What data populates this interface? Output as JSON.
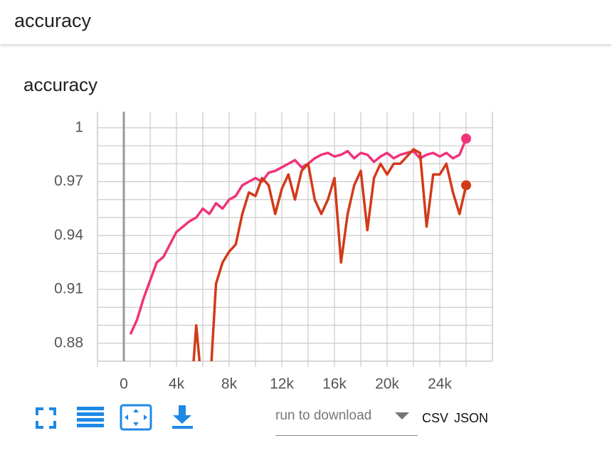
{
  "header": {
    "title": "accuracy"
  },
  "card": {
    "title": "accuracy"
  },
  "chart_data": {
    "type": "line",
    "xlim": [
      -2000,
      28000
    ],
    "ylim": [
      0.87,
      1.009
    ],
    "xticks": [
      0,
      {
        "value": 4000,
        "label": "4k"
      },
      {
        "value": 8000,
        "label": "8k"
      },
      {
        "value": 12000,
        "label": "12k"
      },
      {
        "value": 16000,
        "label": "16k"
      },
      {
        "value": 20000,
        "label": "20k"
      },
      {
        "value": 24000,
        "label": "24k"
      }
    ],
    "yticks": [
      0.88,
      0.91,
      0.94,
      0.97,
      1
    ],
    "xgrid": [
      -2000,
      2000,
      4000,
      6000,
      8000,
      10000,
      12000,
      14000,
      16000,
      18000,
      20000,
      22000,
      24000,
      26000
    ],
    "ygrid": [
      0.88,
      0.89,
      0.9,
      0.91,
      0.92,
      0.93,
      0.94,
      0.95,
      0.96,
      0.97,
      0.98,
      0.99,
      1
    ],
    "grid": true,
    "series": [
      {
        "color": "#f0337a",
        "x": [
          500,
          1000,
          1500,
          2000,
          2500,
          3000,
          3500,
          4000,
          4500,
          5000,
          5500,
          6000,
          6500,
          7000,
          7500,
          8000,
          8500,
          9000,
          9500,
          10000,
          10500,
          11000,
          11500,
          12000,
          12500,
          13000,
          13500,
          14000,
          14500,
          15000,
          15500,
          16000,
          16500,
          17000,
          17500,
          18000,
          18500,
          19000,
          19500,
          20000,
          20500,
          21000,
          21500,
          22000,
          22500,
          23000,
          23500,
          24000,
          24500,
          25000,
          25500,
          26000
        ],
        "values": [
          0.885,
          0.893,
          0.905,
          0.915,
          0.925,
          0.928,
          0.935,
          0.942,
          0.945,
          0.948,
          0.95,
          0.955,
          0.952,
          0.958,
          0.955,
          0.96,
          0.962,
          0.968,
          0.97,
          0.972,
          0.97,
          0.975,
          0.976,
          0.978,
          0.98,
          0.982,
          0.978,
          0.98,
          0.983,
          0.985,
          0.986,
          0.984,
          0.985,
          0.987,
          0.983,
          0.986,
          0.985,
          0.981,
          0.984,
          0.986,
          0.983,
          0.985,
          0.986,
          0.987,
          0.983,
          0.985,
          0.986,
          0.984,
          0.986,
          0.983,
          0.985,
          0.994
        ]
      },
      {
        "color": "#d23a1a",
        "x": [
          5000,
          5500,
          6000,
          6500,
          7000,
          7500,
          8000,
          8500,
          9000,
          9500,
          10000,
          10500,
          11000,
          11500,
          12000,
          12500,
          13000,
          13500,
          14000,
          14500,
          15000,
          15500,
          16000,
          16500,
          17000,
          17500,
          18000,
          18500,
          19000,
          19500,
          20000,
          20500,
          21000,
          21500,
          22000,
          22500,
          23000,
          23500,
          24000,
          24500,
          25000,
          25500,
          26000
        ],
        "values": [
          0.84,
          0.89,
          0.85,
          0.85,
          0.913,
          0.925,
          0.931,
          0.935,
          0.952,
          0.964,
          0.962,
          0.972,
          0.968,
          0.952,
          0.966,
          0.974,
          0.96,
          0.976,
          0.98,
          0.96,
          0.952,
          0.96,
          0.972,
          0.925,
          0.952,
          0.968,
          0.976,
          0.943,
          0.972,
          0.98,
          0.974,
          0.98,
          0.98,
          0.984,
          0.988,
          0.986,
          0.945,
          0.974,
          0.974,
          0.98,
          0.964,
          0.952,
          0.968
        ]
      }
    ]
  },
  "toolbar": {
    "dropdown_placeholder": "run to download",
    "buttons": [
      "CSV",
      "JSON"
    ]
  }
}
